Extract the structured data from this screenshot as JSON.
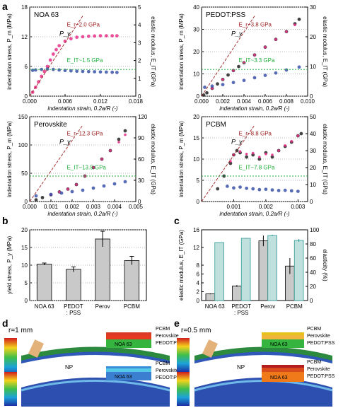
{
  "panel_letters": [
    "a",
    "b",
    "c",
    "d",
    "e"
  ],
  "chart_data": [
    {
      "type": "scatter",
      "title": "NOA 63",
      "xlabel": "indentation strain, 0.2a/R (-)",
      "ylabel": "indentation stress, P_m (MPa)",
      "y2label": "elastic modulus, E_IT (GPa)",
      "xlim": [
        0,
        0.018
      ],
      "ylim": [
        0,
        18
      ],
      "y2lim": [
        0,
        5
      ],
      "xticks": [
        "0.000",
        "0.006",
        "0.012",
        "0.018"
      ],
      "yticks": [
        "0",
        "6",
        "12",
        "18"
      ],
      "y2ticks": [
        "0",
        "1",
        "2",
        "3",
        "4",
        "5"
      ],
      "annotations": [
        "P_y",
        "E_r~2.0 GPa",
        "E_IT~1.5 GPa"
      ],
      "series": [
        {
          "name": "indentation stress",
          "color": "#e8318a",
          "x": [
            0.0005,
            0.001,
            0.0015,
            0.002,
            0.0025,
            0.003,
            0.0035,
            0.004,
            0.0045,
            0.005,
            0.006,
            0.007,
            0.008,
            0.009,
            0.01,
            0.011,
            0.012,
            0.013,
            0.014,
            0.0148
          ],
          "y": [
            0.8,
            1.8,
            2.9,
            4.0,
            5.0,
            6.0,
            7.3,
            8.5,
            9.4,
            10.2,
            11.1,
            11.6,
            11.9,
            12.0,
            12.1,
            12.15,
            12.2,
            12.2,
            12.2,
            12.2
          ]
        },
        {
          "name": "elastic modulus",
          "color": "#3b52a8",
          "axis": "right",
          "x": [
            0.0005,
            0.001,
            0.002,
            0.003,
            0.004,
            0.005,
            0.006,
            0.007,
            0.008,
            0.009,
            0.01,
            0.011,
            0.012,
            0.013,
            0.014,
            0.0148
          ],
          "y": [
            1.45,
            1.47,
            1.5,
            1.52,
            1.5,
            1.47,
            1.44,
            1.42,
            1.4,
            1.39,
            1.38,
            1.37,
            1.36,
            1.35,
            1.34,
            1.33
          ]
        }
      ]
    },
    {
      "type": "scatter",
      "title": "PEDOT:PSS",
      "xlabel": "indentation strain, 0.2a/R (-)",
      "ylabel": "indentation stress, P_m (MPa)",
      "y2label": "elastic modulus, E_IT (GPa)",
      "xlim": [
        0,
        0.01
      ],
      "ylim": [
        0,
        40
      ],
      "y2lim": [
        0,
        30
      ],
      "xticks": [
        "0.000",
        "0.002",
        "0.004",
        "0.006",
        "0.008",
        "0.010"
      ],
      "yticks": [
        "0",
        "10",
        "20",
        "30",
        "40"
      ],
      "y2ticks": [
        "0",
        "10",
        "20",
        "30"
      ],
      "annotations": [
        "P_y",
        "E_r~3.8 GPa",
        "E_IT~3.3 GPa"
      ],
      "series": [
        {
          "name": "indentation stress",
          "color": "#222222",
          "x": [
            0.0002,
            0.0005,
            0.001,
            0.0015,
            0.002,
            0.0025,
            0.003,
            0.0035,
            0.004,
            0.005,
            0.006,
            0.007,
            0.008,
            0.0088,
            0.0092
          ],
          "y": [
            0.5,
            1.5,
            3.5,
            5.5,
            7.5,
            9.5,
            11.5,
            13.3,
            15.0,
            18.5,
            22.0,
            25.5,
            29.0,
            32.5,
            34.5
          ]
        },
        {
          "name": "indentation stress (fit)",
          "color": "#e8318a",
          "x": [
            0.001,
            0.002,
            0.003,
            0.004,
            0.005,
            0.006,
            0.007,
            0.008,
            0.0088
          ],
          "y": [
            3.5,
            7.5,
            11.5,
            15.0,
            18.5,
            22.0,
            25.5,
            29.0,
            32.0
          ]
        },
        {
          "name": "elastic modulus",
          "color": "#3b52a8",
          "axis": "right",
          "x": [
            0.0003,
            0.001,
            0.002,
            0.003,
            0.004,
            0.005,
            0.006,
            0.007,
            0.008,
            0.0092
          ],
          "y": [
            3.0,
            3.4,
            3.9,
            4.6,
            5.3,
            6.2,
            7.0,
            7.8,
            8.8,
            9.8
          ]
        }
      ]
    },
    {
      "type": "scatter",
      "title": "Perovskite",
      "xlabel": "indentation strain, 0.2a/R (-)",
      "ylabel": "indentation stress, P_m (MPa)",
      "y2label": "elastic modulus, E_IT (GPa)",
      "xlim": [
        0,
        0.005
      ],
      "ylim": [
        0,
        150
      ],
      "y2lim": [
        0,
        120
      ],
      "xticks": [
        "0.000",
        "0.001",
        "0.002",
        "0.003",
        "0.004",
        "0.005"
      ],
      "yticks": [
        "0",
        "50",
        "100",
        "150"
      ],
      "y2ticks": [
        "0",
        "30",
        "60",
        "90",
        "120"
      ],
      "annotations": [
        "P_y",
        "E_r~12.3 GPa",
        "E_IT~13.5 GPa"
      ],
      "series": [
        {
          "name": "indentation stress",
          "color": "#222222",
          "x": [
            0.0003,
            0.0006,
            0.001,
            0.0014,
            0.0018,
            0.0022,
            0.0026,
            0.003,
            0.0034,
            0.0038,
            0.0042,
            0.0045
          ],
          "y": [
            3,
            7,
            12,
            17,
            22,
            30,
            45,
            60,
            75,
            90,
            110,
            125
          ]
        },
        {
          "name": "indentation stress (fit)",
          "color": "#e8318a",
          "x": [
            0.001,
            0.0014,
            0.0018,
            0.0022,
            0.0026,
            0.003,
            0.0034,
            0.0038,
            0.0042,
            0.0045
          ],
          "y": [
            12,
            17,
            22,
            30,
            45,
            60,
            75,
            90,
            105,
            118
          ]
        },
        {
          "name": "elastic modulus",
          "color": "#3b52a8",
          "axis": "right",
          "x": [
            0.0003,
            0.001,
            0.0015,
            0.002,
            0.0025,
            0.003,
            0.0035,
            0.004,
            0.0045
          ],
          "y": [
            8,
            10,
            12,
            14,
            16,
            19,
            22,
            25,
            28
          ]
        }
      ]
    },
    {
      "type": "scatter",
      "title": "PCBM",
      "xlabel": "indentation strain, 0.2a/R (-)",
      "ylabel": "indentation stress, P_m (MPa)",
      "y2label": "elastic modulus, E_IT (GPa)",
      "xlim": [
        0,
        0.0033
      ],
      "ylim": [
        0,
        20
      ],
      "y2lim": [
        0,
        50
      ],
      "xticks": [
        "0.001",
        "0.002",
        "0.003"
      ],
      "yticks": [
        "0",
        "5",
        "10",
        "15",
        "20"
      ],
      "y2ticks": [
        "0",
        "10",
        "20",
        "30",
        "40",
        "50"
      ],
      "annotations": [
        "P_y",
        "E_r~8.8 GPa",
        "E_IT~7.8 GPa"
      ],
      "series": [
        {
          "name": "indentation stress",
          "color": "#222222",
          "x": [
            0.0005,
            0.0007,
            0.0009,
            0.001,
            0.0011,
            0.0012,
            0.0014,
            0.0016,
            0.0018,
            0.002,
            0.0022,
            0.0024,
            0.0026,
            0.0028,
            0.003,
            0.0031
          ],
          "y": [
            3,
            6,
            9,
            11,
            12,
            11.5,
            10.5,
            11,
            10,
            11.5,
            10.5,
            12,
            13,
            14,
            15.5,
            16
          ]
        },
        {
          "name": "indentation stress (fit)",
          "color": "#e8318a",
          "x": [
            0.0009,
            0.001,
            0.0012,
            0.0014,
            0.0016,
            0.0018,
            0.002,
            0.0022,
            0.0024,
            0.0026,
            0.0028,
            0.003
          ],
          "y": [
            9.5,
            11,
            11.8,
            11.2,
            11.4,
            10.5,
            11.2,
            11,
            12,
            13.2,
            14.2,
            15.5
          ]
        },
        {
          "name": "elastic modulus",
          "color": "#3b52a8",
          "axis": "right",
          "x": [
            0.0008,
            0.001,
            0.0012,
            0.0014,
            0.0016,
            0.0018,
            0.002,
            0.0022,
            0.0024,
            0.0026,
            0.0028,
            0.003
          ],
          "y": [
            9,
            8,
            8.5,
            7.8,
            7.5,
            7,
            7.2,
            6.8,
            6.5,
            6.6,
            6.3,
            6
          ]
        }
      ]
    },
    {
      "type": "bar",
      "title": "",
      "categories": [
        "NOA 63",
        "PEDOT\n: PSS",
        "Perov",
        "PCBM"
      ],
      "values": [
        10.3,
        8.8,
        17.4,
        11.3
      ],
      "errors": [
        0.3,
        0.7,
        2.2,
        1.2
      ],
      "xlabel": "",
      "ylabel": "yield stress, P_y (MPa)",
      "ylim": [
        0,
        20
      ],
      "yticks": [
        "0",
        "5",
        "10",
        "15",
        "20"
      ]
    },
    {
      "type": "bar",
      "title": "",
      "categories": [
        "NOA 63",
        "PEDOT\n: PSS",
        "Perov",
        "PCBM"
      ],
      "series": [
        {
          "name": "elastic modulus",
          "values": [
            1.5,
            3.3,
            13.5,
            7.8
          ],
          "errors": [
            0.1,
            0.2,
            1.2,
            1.8
          ]
        },
        {
          "name": "elasticity",
          "axis": "right",
          "values": [
            82,
            88,
            92,
            85
          ],
          "errors": [
            0.5,
            0.5,
            1,
            2
          ]
        }
      ],
      "xlabel": "",
      "ylabel": "elastic modulus, E_IT (GPa)",
      "y2label": "elasticity (%)",
      "ylim": [
        0,
        16
      ],
      "y2lim": [
        0,
        100
      ],
      "yticks": [
        "0",
        "2",
        "4",
        "6",
        "8",
        "12",
        "16"
      ],
      "y2ticks": [
        "0",
        "20",
        "40",
        "60",
        "80",
        "100"
      ]
    }
  ],
  "fem_d": {
    "label": "r=1 mm",
    "np": "NP",
    "top": {
      "layers": [
        "PCBM",
        "Perovskite",
        "NOA 63",
        "PEDOT:PSS"
      ]
    },
    "bottom": {
      "layers": [
        "PCBM",
        "Perovskite",
        "NOA 63",
        "PEDOT:PSS"
      ]
    }
  },
  "fem_e": {
    "label": "r=0.5 mm",
    "np": "NP",
    "top": {
      "layers": [
        "PCBM",
        "Perovskite",
        "NOA 63",
        "PEDOT:PSS"
      ]
    },
    "bottom": {
      "layers": [
        "PCBM",
        "Perovskite",
        "NOA 63",
        "PEDOT:PSS"
      ]
    }
  },
  "colors": {
    "stress": "#e8318a",
    "modulus": "#3b52a8",
    "fit": "#9b1c1c",
    "green": "#1fae3a",
    "bar": "#c9c9c9",
    "teal": "#bfe0dd",
    "teal_edge": "#2e9a95"
  }
}
